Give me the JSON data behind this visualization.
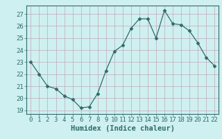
{
  "x": [
    0,
    1,
    2,
    3,
    4,
    5,
    6,
    7,
    8,
    9,
    10,
    11,
    12,
    13,
    14,
    15,
    16,
    17,
    18,
    19,
    20,
    21,
    22
  ],
  "y": [
    23.0,
    22.0,
    21.0,
    20.8,
    20.2,
    19.9,
    19.2,
    19.3,
    20.4,
    22.3,
    23.9,
    24.4,
    25.8,
    26.6,
    26.6,
    25.0,
    27.3,
    26.2,
    26.1,
    25.6,
    24.6,
    23.4,
    22.7
  ],
  "line_color": "#2e6b6b",
  "marker": "D",
  "marker_size": 2.5,
  "bg_color": "#cff0f0",
  "grid_color": "#c0a8b8",
  "xlabel": "Humidex (Indice chaleur)",
  "xlabel_color": "#2e6b6b",
  "xlim": [
    -0.5,
    22.5
  ],
  "ylim": [
    18.7,
    27.7
  ],
  "yticks": [
    19,
    20,
    21,
    22,
    23,
    24,
    25,
    26,
    27
  ],
  "xticks": [
    0,
    1,
    2,
    3,
    4,
    5,
    6,
    7,
    8,
    9,
    10,
    11,
    12,
    13,
    14,
    15,
    16,
    17,
    18,
    19,
    20,
    21,
    22
  ],
  "tick_color": "#2e6b6b",
  "tick_fontsize": 6.5,
  "xlabel_fontsize": 7.5
}
